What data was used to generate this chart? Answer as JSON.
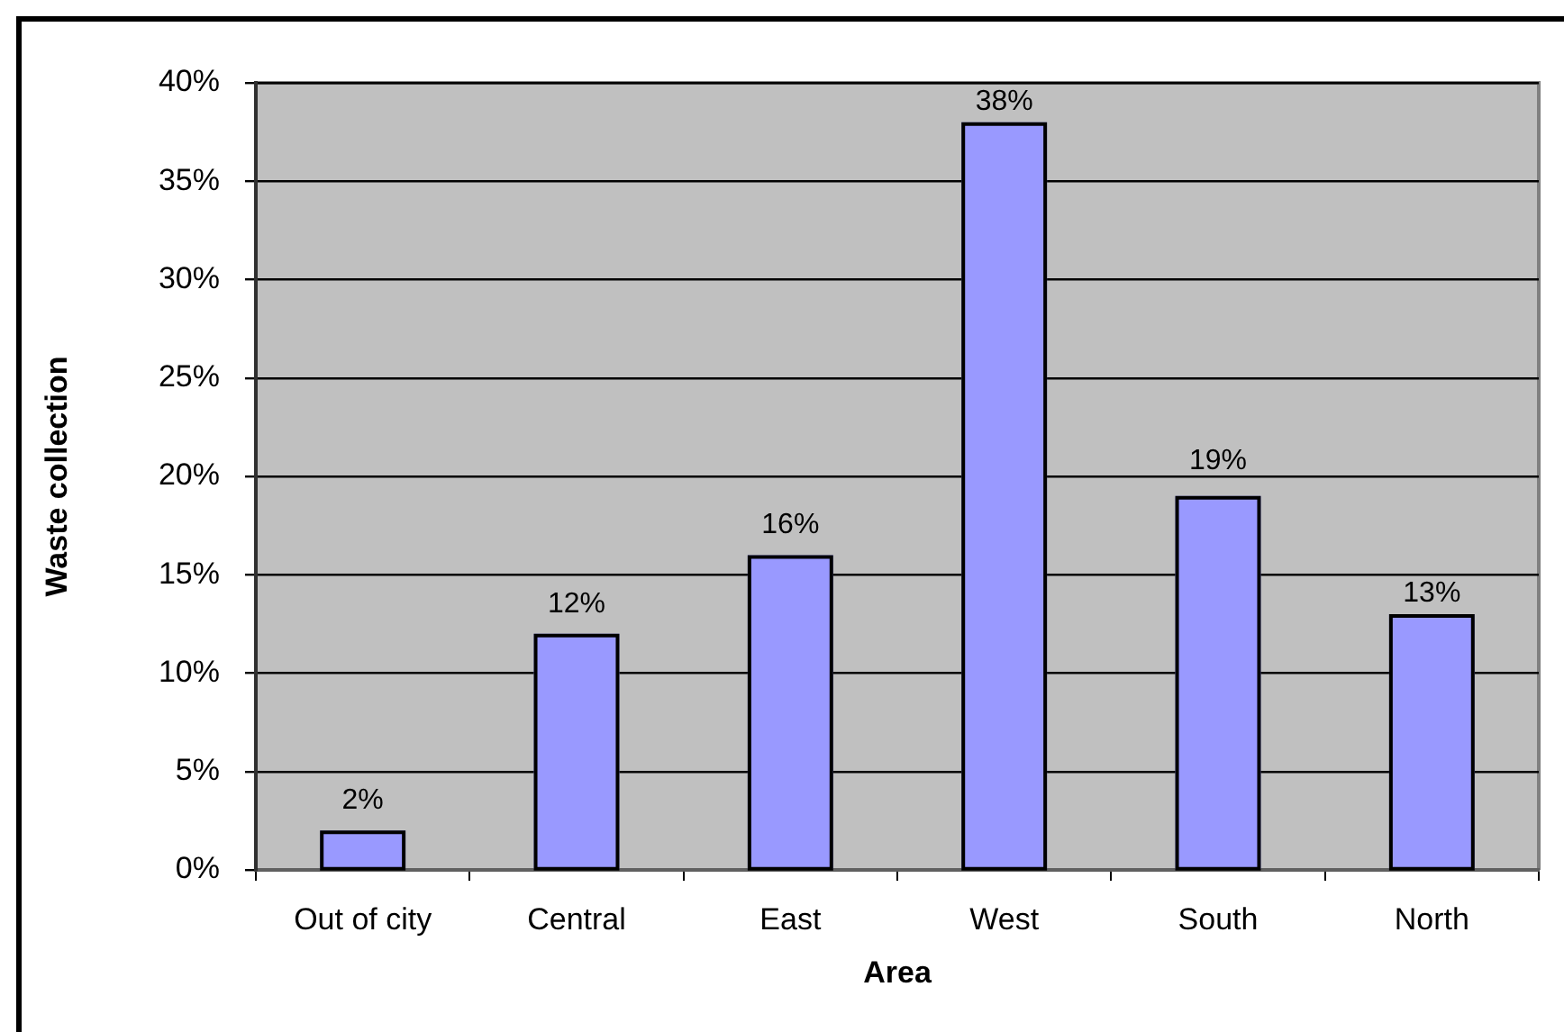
{
  "chart_data": {
    "type": "bar",
    "xlabel": "Area",
    "ylabel": "Waste collection",
    "categories": [
      "Out of city",
      "Central",
      "East",
      "West",
      "South",
      "North"
    ],
    "values": [
      2,
      12,
      16,
      38,
      19,
      13
    ],
    "color": "#9999ff",
    "value_labels": [
      "2%",
      "12%",
      "16%",
      "38%",
      "19%",
      "13%"
    ],
    "ylim": [
      0,
      40
    ],
    "yticks": [
      {
        "value": 0,
        "label": "0%"
      },
      {
        "value": 5,
        "label": "5%"
      },
      {
        "value": 10,
        "label": "10%"
      },
      {
        "value": 15,
        "label": "15%"
      },
      {
        "value": 20,
        "label": "20%"
      },
      {
        "value": 25,
        "label": "25%"
      },
      {
        "value": 30,
        "label": "30%"
      },
      {
        "value": 35,
        "label": "35%"
      },
      {
        "value": 40,
        "label": "40%"
      }
    ],
    "grid": "y",
    "legend": false
  }
}
